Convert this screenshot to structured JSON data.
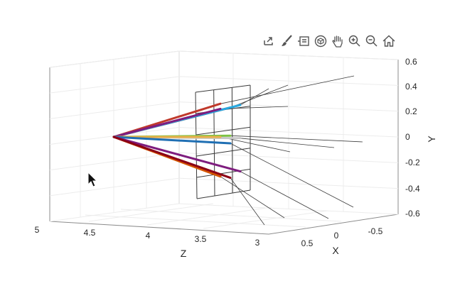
{
  "toolbar": {
    "items": [
      {
        "icon": "export-icon"
      },
      {
        "icon": "brush-icon"
      },
      {
        "icon": "datatip-icon"
      },
      {
        "icon": "rotate-3d-icon"
      },
      {
        "icon": "pan-hand-icon"
      },
      {
        "icon": "zoom-in-icon"
      },
      {
        "icon": "zoom-out-icon"
      },
      {
        "icon": "home-icon"
      }
    ]
  },
  "chart_data": {
    "type": "line",
    "view": "3d",
    "grid": true,
    "xlabel": "X",
    "ylabel": "Y",
    "zlabel": "Z",
    "xlim": [
      -0.7,
      0.7
    ],
    "ylim": [
      -0.6,
      0.6
    ],
    "zlim": [
      3,
      5
    ],
    "x_ticks": [
      "0.5",
      "0",
      "-0.5"
    ],
    "y_ticks": [
      "0.6",
      "0.4",
      "0.2",
      "0",
      "-0.2",
      "-0.4",
      "-0.6"
    ],
    "z_ticks": [
      "5",
      "4.5",
      "4",
      "3.5",
      "3"
    ],
    "origin": {
      "x": 0,
      "y": 0,
      "z": 4.9
    },
    "rays": [
      {
        "color": "#c0392b",
        "end": {
          "y": 0.26
        }
      },
      {
        "color": "#9b1b1b",
        "end": {
          "y": 0.23
        }
      },
      {
        "color": "#27a9e1",
        "end": {
          "y": 0.25
        }
      },
      {
        "color": "#7e1d7e",
        "end": {
          "y": 0.22
        }
      },
      {
        "color": "#7cc243",
        "end": {
          "y": 0.01
        }
      },
      {
        "color": "#c7c7c7",
        "end": {
          "y": -0.01
        }
      },
      {
        "color": "#e8b04a",
        "end": {
          "y": 0.0
        }
      },
      {
        "color": "#1f6fb3",
        "end": {
          "y": -0.05
        }
      },
      {
        "color": "#7e1d7e",
        "end": {
          "y": -0.27
        }
      },
      {
        "color": "#d35400",
        "end": {
          "y": -0.31
        }
      },
      {
        "color": "#8b0015",
        "end": {
          "y": -0.32
        }
      }
    ]
  }
}
